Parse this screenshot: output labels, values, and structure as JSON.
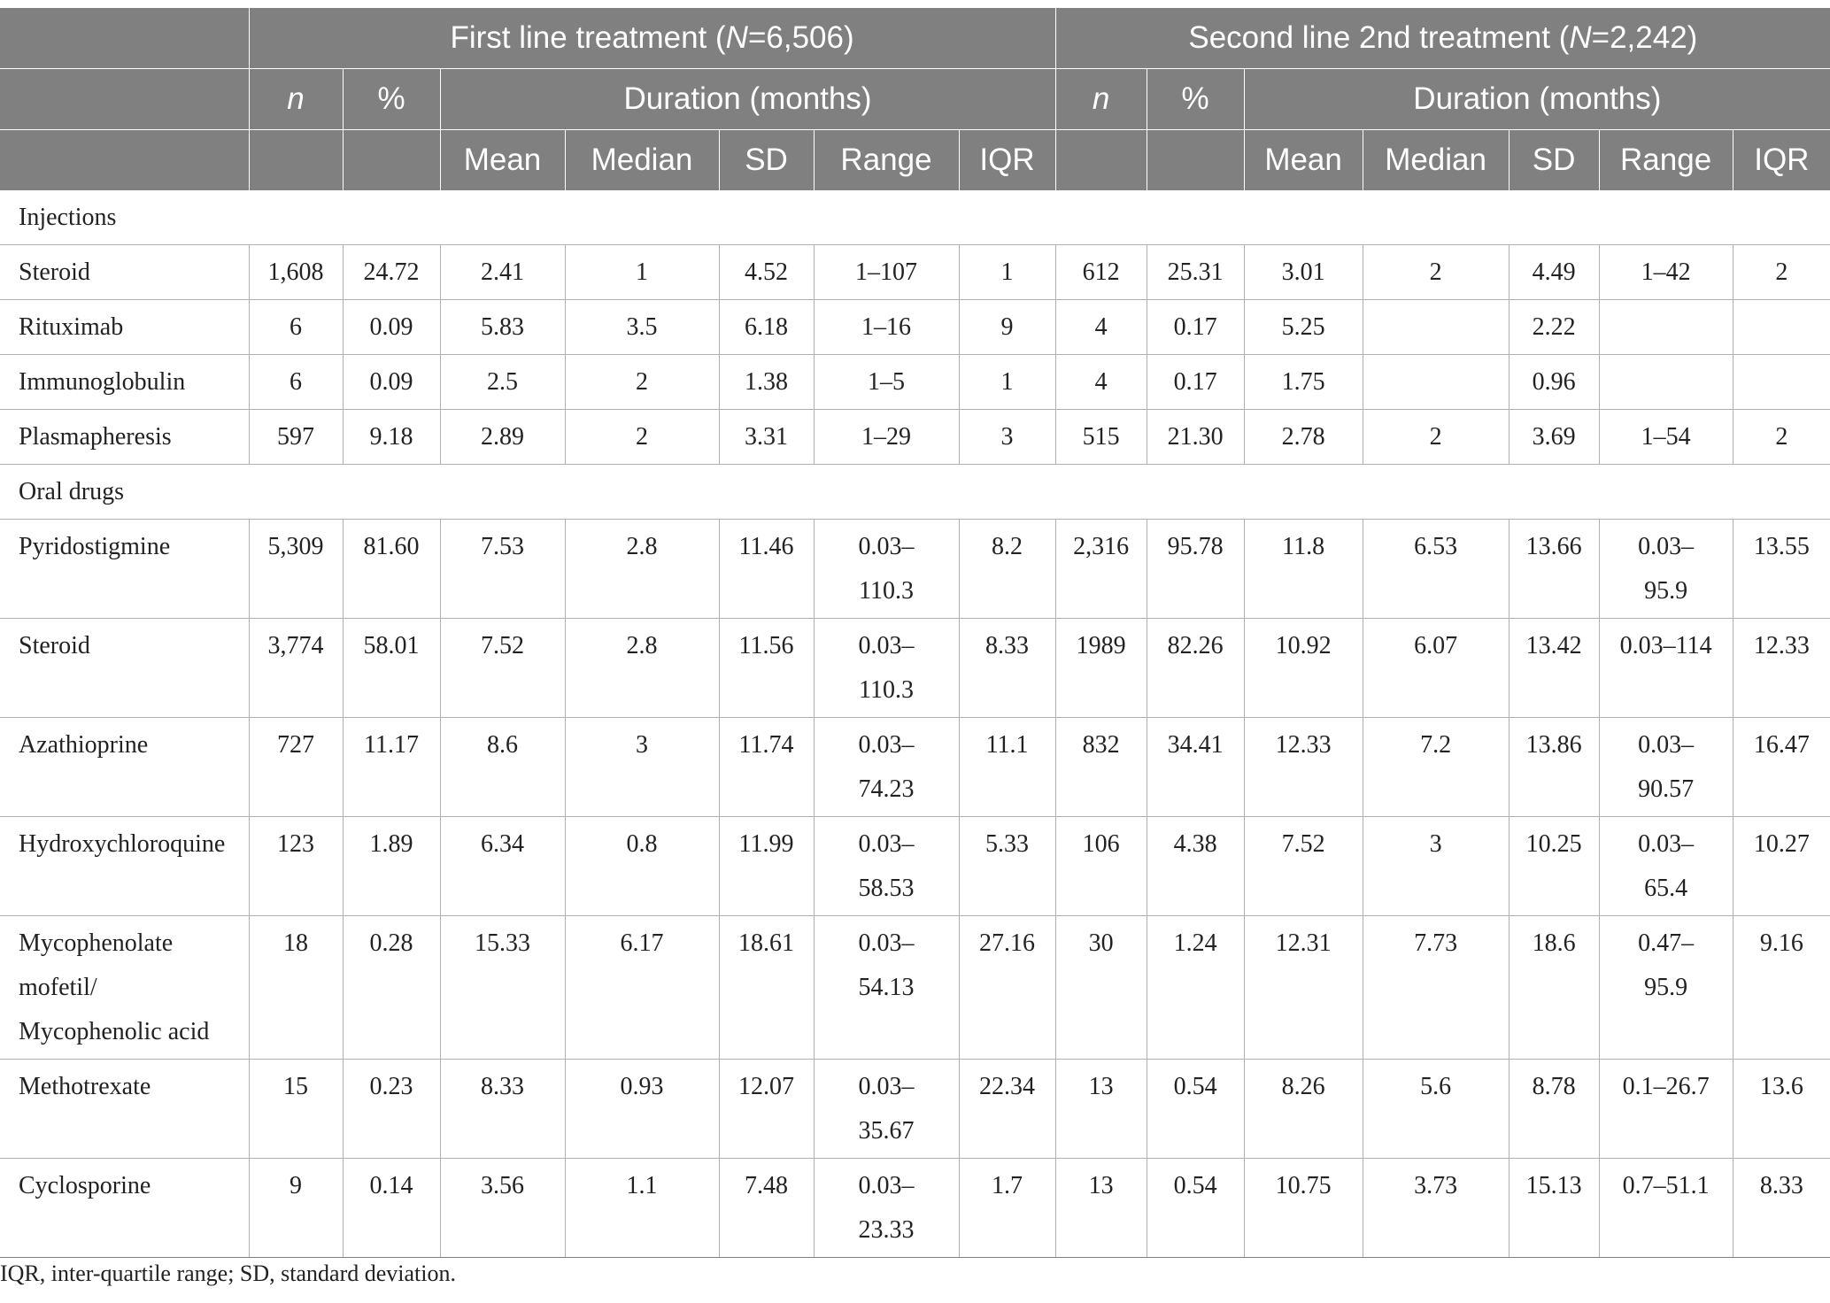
{
  "header": {
    "first_line_prefix": "First line treatment (",
    "first_line_N_sym": "N",
    "first_line_N_val": "=6,506)",
    "second_line_prefix": "Second line 2nd treatment (",
    "second_line_N_sym": "N",
    "second_line_N_val": "=2,242)",
    "n_label": "n",
    "pct_label": "%",
    "duration_label": "Duration (months)",
    "stats": [
      "Mean",
      "Median",
      "SD",
      "Range",
      "IQR"
    ]
  },
  "sections": [
    {
      "title": "Injections",
      "rows": [
        {
          "name": "Steroid",
          "cells": [
            "1,608",
            "24.72",
            "2.41",
            "1",
            "4.52",
            "1–107",
            "1",
            "612",
            "25.31",
            "3.01",
            "2",
            "4.49",
            "1–42",
            "2"
          ]
        },
        {
          "name": "Rituximab",
          "cells": [
            "6",
            "0.09",
            "5.83",
            "3.5",
            "6.18",
            "1–16",
            "9",
            "4",
            "0.17",
            "5.25",
            "",
            "2.22",
            "",
            ""
          ]
        },
        {
          "name": "Immunoglobulin",
          "cells": [
            "6",
            "0.09",
            "2.5",
            "2",
            "1.38",
            "1–5",
            "1",
            "4",
            "0.17",
            "1.75",
            "",
            "0.96",
            "",
            ""
          ]
        },
        {
          "name": "Plasmapheresis",
          "cells": [
            "597",
            "9.18",
            "2.89",
            "2",
            "3.31",
            "1–29",
            "3",
            "515",
            "21.30",
            "2.78",
            "2",
            "3.69",
            "1–54",
            "2"
          ]
        }
      ]
    },
    {
      "title": "Oral drugs",
      "rows": [
        {
          "name": "Pyridostigmine",
          "cells": [
            "5,309",
            "81.60",
            "7.53",
            "2.8",
            "11.46",
            "0.03–\n110.3",
            "8.2",
            "2,316",
            "95.78",
            "11.8",
            "6.53",
            "13.66",
            "0.03–\n95.9",
            "13.55"
          ]
        },
        {
          "name": "Steroid",
          "cells": [
            "3,774",
            "58.01",
            "7.52",
            "2.8",
            "11.56",
            "0.03–\n110.3",
            "8.33",
            "1989",
            "82.26",
            "10.92",
            "6.07",
            "13.42",
            "0.03–114",
            "12.33"
          ]
        },
        {
          "name": "Azathioprine",
          "cells": [
            "727",
            "11.17",
            "8.6",
            "3",
            "11.74",
            "0.03–\n74.23",
            "11.1",
            "832",
            "34.41",
            "12.33",
            "7.2",
            "13.86",
            "0.03–\n90.57",
            "16.47"
          ]
        },
        {
          "name": "Hydroxychloroquine",
          "cells": [
            "123",
            "1.89",
            "6.34",
            "0.8",
            "11.99",
            "0.03–\n58.53",
            "5.33",
            "106",
            "4.38",
            "7.52",
            "3",
            "10.25",
            "0.03–\n65.4",
            "10.27"
          ]
        },
        {
          "name": "Mycophenolate\nmofetil/\nMycophenolic acid",
          "cells": [
            "18",
            "0.28",
            "15.33",
            "6.17",
            "18.61",
            "0.03–\n54.13",
            "27.16",
            "30",
            "1.24",
            "12.31",
            "7.73",
            "18.6",
            "0.47–\n95.9",
            "9.16"
          ]
        },
        {
          "name": "Methotrexate",
          "cells": [
            "15",
            "0.23",
            "8.33",
            "0.93",
            "12.07",
            "0.03–\n35.67",
            "22.34",
            "13",
            "0.54",
            "8.26",
            "5.6",
            "8.78",
            "0.1–26.7",
            "13.6"
          ]
        },
        {
          "name": "Cyclosporine",
          "cells": [
            "9",
            "0.14",
            "3.56",
            "1.1",
            "7.48",
            "0.03–\n23.33",
            "1.7",
            "13",
            "0.54",
            "10.75",
            "3.73",
            "15.13",
            "0.7–51.1",
            "8.33"
          ]
        }
      ]
    }
  ],
  "footnote": "IQR, inter-quartile range; SD, standard deviation.",
  "colors": {
    "header_bg": "#808080",
    "header_text": "#ffffff",
    "grid": "#b0b0b0",
    "text": "#222222"
  }
}
